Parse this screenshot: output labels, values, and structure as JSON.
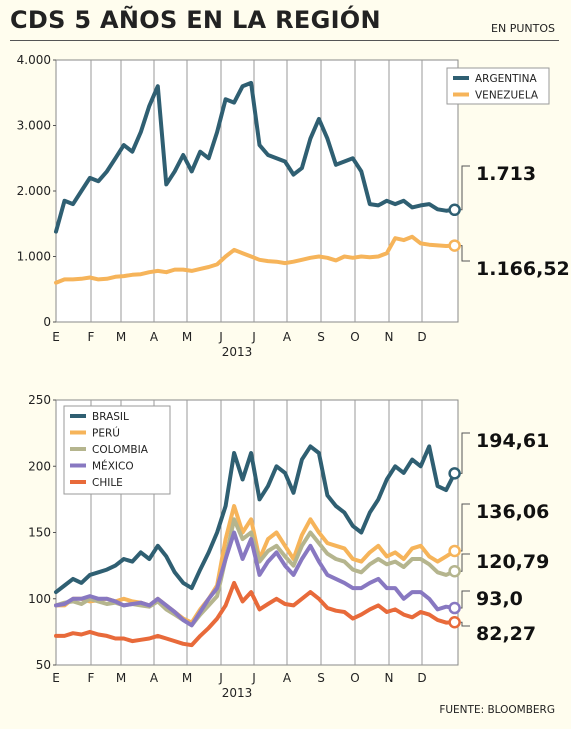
{
  "title": "CDS 5 AÑOS EN LA REGIÓN",
  "units": "EN PUNTOS",
  "source": "FUENTE: BLOOMBERG",
  "colors": {
    "background": "#fffdee",
    "frame": "#8a8a8a",
    "argentina": "#2f5f72",
    "venezuela": "#f6b45a",
    "brasil": "#2f5f72",
    "peru": "#f6b45a",
    "colombia": "#b5b58e",
    "mexico": "#8878c1",
    "chile": "#e86a3a"
  },
  "chart_data": [
    {
      "type": "line",
      "ylim": [
        0,
        4000
      ],
      "y_ticks": [
        "4.000",
        "3.000",
        "2.000",
        "1.000",
        "0"
      ],
      "x_ticks": [
        "E",
        "F",
        "M",
        "A",
        "M",
        "J",
        "J",
        "A",
        "S",
        "O",
        "N",
        "D"
      ],
      "year_label": "2013",
      "legend_position": "top-right",
      "grid": "vertical month lines",
      "x": [
        0.0,
        0.25,
        0.5,
        0.75,
        1.0,
        1.25,
        1.5,
        1.75,
        2.0,
        2.25,
        2.5,
        2.75,
        3.0,
        3.25,
        3.5,
        3.75,
        4.0,
        4.25,
        4.5,
        4.75,
        5.0,
        5.25,
        5.5,
        5.75,
        6.0,
        6.25,
        6.5,
        6.75,
        7.0,
        7.25,
        7.5,
        7.75,
        8.0,
        8.25,
        8.5,
        8.75,
        9.0,
        9.25,
        9.5,
        9.75,
        10.0,
        10.25,
        10.5,
        10.75,
        11.0,
        11.25,
        11.5,
        11.75
      ],
      "series": [
        {
          "name": "ARGENTINA",
          "color_key": "argentina",
          "values": [
            1380,
            1850,
            1800,
            2000,
            2200,
            2150,
            2300,
            2500,
            2700,
            2600,
            2900,
            3300,
            3600,
            2100,
            2300,
            2550,
            2300,
            2600,
            2500,
            2900,
            3400,
            3350,
            3600,
            3650,
            2700,
            2550,
            2500,
            2450,
            2250,
            2350,
            2800,
            3100,
            2800,
            2400,
            2450,
            2500,
            2300,
            1800,
            1780,
            1850,
            1800,
            1850,
            1750,
            1780,
            1800,
            1720,
            1700,
            1713
          ]
        },
        {
          "name": "VENEZUELA",
          "color_key": "venezuela",
          "values": [
            600,
            650,
            650,
            660,
            680,
            650,
            660,
            690,
            700,
            720,
            730,
            760,
            780,
            760,
            800,
            800,
            780,
            810,
            840,
            880,
            1000,
            1100,
            1050,
            1000,
            950,
            930,
            920,
            900,
            920,
            950,
            980,
            1000,
            980,
            940,
            1000,
            980,
            1000,
            990,
            1000,
            1050,
            1280,
            1250,
            1300,
            1200,
            1180,
            1170,
            1160,
            1166.52
          ]
        }
      ],
      "end_labels": [
        "1.713",
        "1.166,52"
      ]
    },
    {
      "type": "line",
      "ylim": [
        50,
        250
      ],
      "y_ticks": [
        "250",
        "200",
        "150",
        "100",
        "50"
      ],
      "x_ticks": [
        "E",
        "F",
        "M",
        "A",
        "M",
        "J",
        "J",
        "A",
        "S",
        "O",
        "N",
        "D"
      ],
      "year_label": "2013",
      "legend_position": "top-left",
      "grid": "vertical month lines",
      "x": [
        0.0,
        0.25,
        0.5,
        0.75,
        1.0,
        1.25,
        1.5,
        1.75,
        2.0,
        2.25,
        2.5,
        2.75,
        3.0,
        3.25,
        3.5,
        3.75,
        4.0,
        4.25,
        4.5,
        4.75,
        5.0,
        5.25,
        5.5,
        5.75,
        6.0,
        6.25,
        6.5,
        6.75,
        7.0,
        7.25,
        7.5,
        7.75,
        8.0,
        8.25,
        8.5,
        8.75,
        9.0,
        9.25,
        9.5,
        9.75,
        10.0,
        10.25,
        10.5,
        10.75,
        11.0,
        11.25,
        11.5,
        11.75
      ],
      "series": [
        {
          "name": "BRASIL",
          "color_key": "brasil",
          "values": [
            105,
            110,
            115,
            112,
            118,
            120,
            122,
            125,
            130,
            128,
            135,
            130,
            140,
            132,
            120,
            112,
            108,
            122,
            135,
            150,
            170,
            210,
            190,
            210,
            175,
            185,
            200,
            195,
            180,
            205,
            215,
            210,
            178,
            170,
            165,
            155,
            150,
            165,
            175,
            190,
            200,
            195,
            205,
            200,
            215,
            185,
            182,
            194.61
          ]
        },
        {
          "name": "PERÚ",
          "color_key": "peru",
          "values": [
            95,
            95,
            100,
            100,
            98,
            99,
            100,
            98,
            100,
            98,
            97,
            95,
            100,
            95,
            90,
            85,
            82,
            92,
            100,
            110,
            145,
            170,
            150,
            160,
            130,
            145,
            150,
            140,
            130,
            148,
            160,
            150,
            142,
            140,
            138,
            130,
            128,
            135,
            140,
            132,
            135,
            130,
            138,
            140,
            132,
            128,
            132,
            136.06
          ]
        },
        {
          "name": "COLOMBIA",
          "color_key": "colombia",
          "values": [
            95,
            97,
            98,
            96,
            100,
            98,
            96,
            97,
            95,
            96,
            95,
            94,
            98,
            92,
            88,
            84,
            80,
            88,
            95,
            102,
            130,
            160,
            145,
            150,
            128,
            136,
            140,
            132,
            125,
            140,
            150,
            142,
            134,
            130,
            128,
            122,
            120,
            126,
            130,
            126,
            128,
            124,
            130,
            130,
            126,
            120,
            118,
            120.79
          ]
        },
        {
          "name": "MÉXICO",
          "color_key": "mexico",
          "values": [
            95,
            96,
            100,
            100,
            102,
            100,
            100,
            98,
            95,
            96,
            97,
            95,
            100,
            95,
            90,
            84,
            80,
            90,
            100,
            108,
            130,
            150,
            130,
            145,
            118,
            128,
            135,
            125,
            118,
            130,
            140,
            128,
            118,
            115,
            112,
            108,
            108,
            112,
            115,
            108,
            108,
            100,
            105,
            105,
            100,
            92,
            94,
            93.0
          ]
        },
        {
          "name": "CHILE",
          "color_key": "chile",
          "values": [
            72,
            72,
            74,
            73,
            75,
            73,
            72,
            70,
            70,
            68,
            69,
            70,
            72,
            70,
            68,
            66,
            65,
            72,
            78,
            85,
            95,
            112,
            98,
            105,
            92,
            96,
            100,
            96,
            95,
            100,
            105,
            100,
            93,
            91,
            90,
            85,
            88,
            92,
            95,
            90,
            92,
            88,
            86,
            90,
            88,
            84,
            82,
            82.27
          ]
        }
      ],
      "end_labels": [
        "194,61",
        "136,06",
        "120,79",
        "93,0",
        "82,27"
      ]
    }
  ]
}
